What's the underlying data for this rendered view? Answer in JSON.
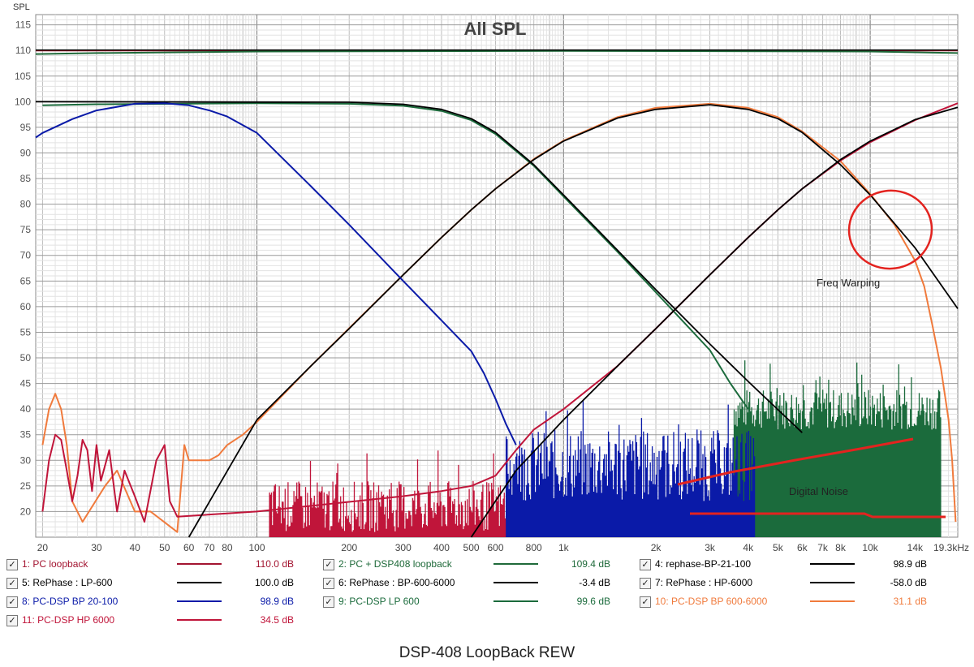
{
  "chart_data": {
    "type": "line",
    "title": "All SPL",
    "ylabel": "SPL",
    "xlabel": "",
    "x_scale": "log",
    "xlim": [
      19,
      19300
    ],
    "ylim": [
      15,
      117
    ],
    "grid": true,
    "legend": "bottom",
    "yticks": [
      20,
      25,
      30,
      35,
      40,
      45,
      50,
      55,
      60,
      65,
      70,
      75,
      80,
      85,
      90,
      95,
      100,
      105,
      110,
      115
    ],
    "xticks": [
      {
        "v": 20,
        "label": "20"
      },
      {
        "v": 30,
        "label": "30"
      },
      {
        "v": 40,
        "label": "40"
      },
      {
        "v": 50,
        "label": "50"
      },
      {
        "v": 60,
        "label": "60"
      },
      {
        "v": 70,
        "label": "70"
      },
      {
        "v": 80,
        "label": "80"
      },
      {
        "v": 100,
        "label": "100"
      },
      {
        "v": 200,
        "label": "200"
      },
      {
        "v": 300,
        "label": "300"
      },
      {
        "v": 400,
        "label": "400"
      },
      {
        "v": 500,
        "label": "500"
      },
      {
        "v": 600,
        "label": "600"
      },
      {
        "v": 800,
        "label": "800"
      },
      {
        "v": 1000,
        "label": "1k"
      },
      {
        "v": 2000,
        "label": "2k"
      },
      {
        "v": 3000,
        "label": "3k"
      },
      {
        "v": 4000,
        "label": "4k"
      },
      {
        "v": 5000,
        "label": "5k"
      },
      {
        "v": 6000,
        "label": "6k"
      },
      {
        "v": 7000,
        "label": "7k"
      },
      {
        "v": 8000,
        "label": "8k"
      },
      {
        "v": 10000,
        "label": "10k"
      },
      {
        "v": 14000,
        "label": "14k"
      },
      {
        "v": 19300,
        "label": "19.3kHz"
      }
    ],
    "series": [
      {
        "name": "1: PC loopback",
        "color": "#a31430",
        "value": "110.0 dB",
        "width": 2,
        "points": [
          [
            19,
            110
          ],
          [
            19300,
            110
          ]
        ]
      },
      {
        "name": "2: PC + DSP408 loopback",
        "color": "#1f6a3a",
        "value": "109.4 dB",
        "width": 2,
        "points": [
          [
            19,
            109.3
          ],
          [
            30,
            109.5
          ],
          [
            100,
            109.8
          ],
          [
            1000,
            109.9
          ],
          [
            10000,
            109.8
          ],
          [
            19300,
            109.5
          ]
        ]
      },
      {
        "name": "4: rephase-BP-21-100",
        "color": "#000000",
        "value": "98.9 dB",
        "width": 1.5,
        "points": [
          [
            19,
            110.1
          ],
          [
            19300,
            110.1
          ]
        ]
      },
      {
        "name": "5: RePhase : LP-600",
        "color": "#000000",
        "value": "100.0 dB",
        "width": 1.8,
        "points": [
          [
            19,
            100
          ],
          [
            200,
            99.9
          ],
          [
            300,
            99.5
          ],
          [
            400,
            98.5
          ],
          [
            500,
            96.7
          ],
          [
            600,
            94
          ],
          [
            800,
            87.7
          ],
          [
            1000,
            81.8
          ],
          [
            1500,
            71
          ],
          [
            2000,
            63.3
          ],
          [
            3000,
            52.7
          ],
          [
            4000,
            45.4
          ],
          [
            6000,
            35.4
          ]
        ]
      },
      {
        "name": "6: RePhase : BP-600-6000",
        "color": "#000000",
        "value": "-3.4 dB",
        "width": 1.8,
        "points": [
          [
            60,
            15
          ],
          [
            100,
            37.9
          ],
          [
            150,
            48.4
          ],
          [
            200,
            55.7
          ],
          [
            300,
            66.2
          ],
          [
            400,
            73.5
          ],
          [
            500,
            78.9
          ],
          [
            600,
            83
          ],
          [
            800,
            88.7
          ],
          [
            1000,
            92.3
          ],
          [
            1500,
            96.8
          ],
          [
            2000,
            98.5
          ],
          [
            3000,
            99.4
          ],
          [
            4000,
            98.5
          ],
          [
            5000,
            96.7
          ],
          [
            6000,
            94
          ],
          [
            8000,
            87.7
          ],
          [
            10000,
            81.8
          ],
          [
            14000,
            71.5
          ],
          [
            19300,
            59.6
          ]
        ]
      },
      {
        "name": "7: RePhase : HP-6000",
        "color": "#000000",
        "value": "-58.0 dB",
        "width": 1.8,
        "points": [
          [
            500,
            15
          ],
          [
            700,
            28
          ],
          [
            1000,
            37.9
          ],
          [
            1500,
            48.4
          ],
          [
            2000,
            55.7
          ],
          [
            3000,
            66.2
          ],
          [
            4000,
            73.5
          ],
          [
            5000,
            78.9
          ],
          [
            6000,
            83
          ],
          [
            8000,
            88.7
          ],
          [
            10000,
            92.3
          ],
          [
            14000,
            96.5
          ],
          [
            19300,
            98.9
          ]
        ]
      },
      {
        "name": "8: PC-DSP BP 20-100",
        "color": "#0a1aa8",
        "value": "98.9 dB",
        "width": 2,
        "points": [
          [
            19,
            93
          ],
          [
            20,
            93.9
          ],
          [
            25,
            96.6
          ],
          [
            30,
            98.3
          ],
          [
            40,
            99.6
          ],
          [
            50,
            99.7
          ],
          [
            60,
            99.3
          ],
          [
            70,
            98.3
          ],
          [
            80,
            97.1
          ],
          [
            100,
            93.9
          ],
          [
            150,
            83.5
          ],
          [
            200,
            76
          ],
          [
            300,
            65
          ],
          [
            400,
            57.3
          ],
          [
            500,
            51.3
          ],
          [
            550,
            47
          ],
          [
            600,
            42
          ],
          [
            650,
            37
          ],
          [
            700,
            33
          ]
        ]
      },
      {
        "name": "9: PC-DSP LP 600",
        "color": "#1b6b3c",
        "value": "99.6 dB",
        "width": 2,
        "points": [
          [
            20,
            99.3
          ],
          [
            30,
            99.5
          ],
          [
            100,
            99.7
          ],
          [
            200,
            99.6
          ],
          [
            300,
            99.2
          ],
          [
            400,
            98.2
          ],
          [
            500,
            96.4
          ],
          [
            600,
            93.7
          ],
          [
            800,
            87.5
          ],
          [
            1000,
            81.5
          ],
          [
            1500,
            70.7
          ],
          [
            2000,
            62.8
          ],
          [
            3000,
            51.5
          ],
          [
            3500,
            45
          ],
          [
            4000,
            40
          ]
        ]
      },
      {
        "name": "10: PC-DSP BP 600-6000",
        "color": "#f07a3c",
        "value": "31.1 dB",
        "width": 2,
        "points": [
          [
            20,
            33
          ],
          [
            21,
            40
          ],
          [
            22,
            43
          ],
          [
            23,
            40
          ],
          [
            24,
            33
          ],
          [
            25,
            22
          ],
          [
            27,
            18
          ],
          [
            32,
            25
          ],
          [
            35,
            28
          ],
          [
            40,
            20
          ],
          [
            45,
            20
          ],
          [
            55,
            16
          ],
          [
            58,
            33
          ],
          [
            60,
            30
          ],
          [
            70,
            30
          ],
          [
            75,
            31
          ],
          [
            80,
            33
          ],
          [
            90,
            35
          ],
          [
            100,
            37.5
          ],
          [
            150,
            48.4
          ],
          [
            200,
            55.8
          ],
          [
            300,
            66.2
          ],
          [
            400,
            73.5
          ],
          [
            500,
            78.9
          ],
          [
            600,
            83
          ],
          [
            800,
            88.8
          ],
          [
            1000,
            92.4
          ],
          [
            1500,
            97
          ],
          [
            2000,
            98.8
          ],
          [
            3000,
            99.6
          ],
          [
            4000,
            98.8
          ],
          [
            5000,
            97
          ],
          [
            6000,
            94.2
          ],
          [
            8000,
            88.4
          ],
          [
            10000,
            82
          ],
          [
            12000,
            76
          ],
          [
            14000,
            69
          ],
          [
            15000,
            64
          ],
          [
            16000,
            56
          ],
          [
            17000,
            48
          ],
          [
            18000,
            38
          ],
          [
            18500,
            30
          ],
          [
            19000,
            18
          ]
        ]
      },
      {
        "name": "11: PC-DSP HP 6000",
        "color": "#c0153a",
        "value": "34.5 dB",
        "width": 2,
        "points": [
          [
            20,
            20
          ],
          [
            21,
            30
          ],
          [
            22,
            35
          ],
          [
            23,
            34
          ],
          [
            24,
            28
          ],
          [
            25,
            22
          ],
          [
            26,
            27
          ],
          [
            27,
            34
          ],
          [
            28,
            32
          ],
          [
            29,
            24
          ],
          [
            30,
            33
          ],
          [
            31,
            26
          ],
          [
            33,
            32
          ],
          [
            35,
            20
          ],
          [
            37,
            28
          ],
          [
            40,
            23
          ],
          [
            43,
            18
          ],
          [
            47,
            30
          ],
          [
            50,
            33
          ],
          [
            52,
            22
          ],
          [
            55,
            19
          ],
          [
            100,
            20
          ],
          [
            300,
            23
          ],
          [
            400,
            24
          ],
          [
            500,
            25
          ],
          [
            600,
            27
          ],
          [
            700,
            32
          ],
          [
            800,
            36
          ],
          [
            1000,
            40
          ],
          [
            1500,
            48.4
          ],
          [
            2000,
            55.7
          ],
          [
            3000,
            66.2
          ],
          [
            4000,
            73.5
          ],
          [
            5000,
            78.9
          ],
          [
            6000,
            83
          ],
          [
            8000,
            88.5
          ],
          [
            10000,
            92.1
          ],
          [
            14000,
            96.4
          ],
          [
            19300,
            99.7
          ]
        ]
      }
    ],
    "annotations": [
      "Freq Warping",
      "Digital Noise"
    ],
    "caption": "DSP-408 LoopBack REW"
  }
}
